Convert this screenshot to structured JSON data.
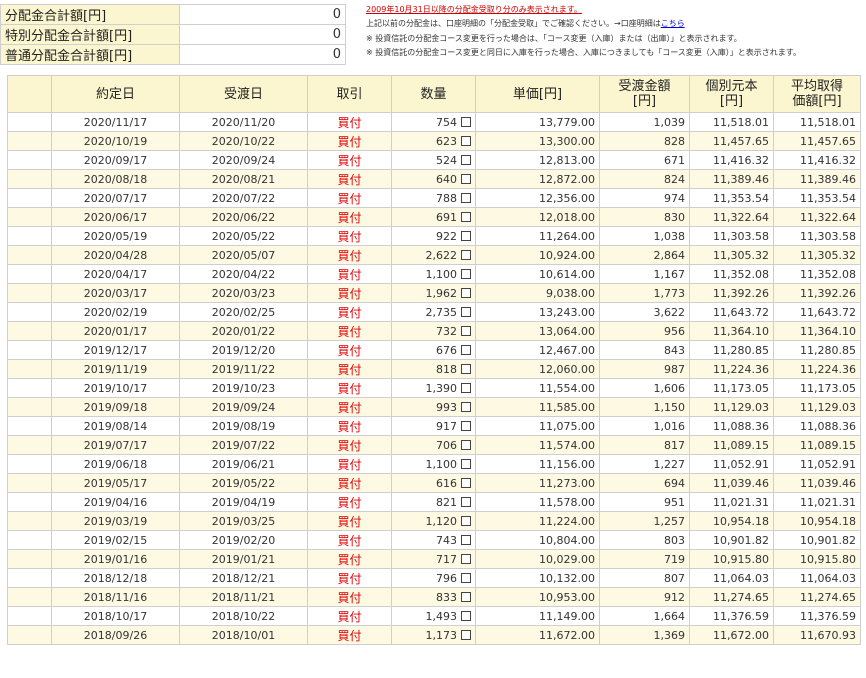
{
  "summary": [
    {
      "label": "分配金合計額[円]",
      "value": "0"
    },
    {
      "label": "特別分配金合計額[円]",
      "value": "0"
    },
    {
      "label": "普通分配金合計額[円]",
      "value": "0"
    }
  ],
  "notes": {
    "line1": "2009年10月31日以降の分配金受取り分のみ表示されます。",
    "line2_pre": "上記以前の分配金は、口座明細の",
    "line2_mid": "「分配金受取」",
    "line2_post": "でご確認ください。→口座明細は",
    "line2_link": "こちら",
    "line3": "※ 投資信託の分配金コース変更を行った場合は、「コース変更（入庫）または（出庫）」と表示されます。",
    "line4": "※ 投資信託の分配金コース変更と同日に入庫を行った場合、入庫につきましても「コース変更（入庫）」と表示されます。"
  },
  "table": {
    "headers": [
      "",
      "約定日",
      "受渡日",
      "取引",
      "数量",
      "単価[円]",
      "受渡金額\n[円]",
      "個別元本\n[円]",
      "平均取得\n価額[円]"
    ],
    "rows": [
      [
        "2020/11/17",
        "2020/11/20",
        "買付",
        "754",
        "13,779.00",
        "1,039",
        "11,518.01",
        "11,518.01"
      ],
      [
        "2020/10/19",
        "2020/10/22",
        "買付",
        "623",
        "13,300.00",
        "828",
        "11,457.65",
        "11,457.65"
      ],
      [
        "2020/09/17",
        "2020/09/24",
        "買付",
        "524",
        "12,813.00",
        "671",
        "11,416.32",
        "11,416.32"
      ],
      [
        "2020/08/18",
        "2020/08/21",
        "買付",
        "640",
        "12,872.00",
        "824",
        "11,389.46",
        "11,389.46"
      ],
      [
        "2020/07/17",
        "2020/07/22",
        "買付",
        "788",
        "12,356.00",
        "974",
        "11,353.54",
        "11,353.54"
      ],
      [
        "2020/06/17",
        "2020/06/22",
        "買付",
        "691",
        "12,018.00",
        "830",
        "11,322.64",
        "11,322.64"
      ],
      [
        "2020/05/19",
        "2020/05/22",
        "買付",
        "922",
        "11,264.00",
        "1,038",
        "11,303.58",
        "11,303.58"
      ],
      [
        "2020/04/28",
        "2020/05/07",
        "買付",
        "2,622",
        "10,924.00",
        "2,864",
        "11,305.32",
        "11,305.32"
      ],
      [
        "2020/04/17",
        "2020/04/22",
        "買付",
        "1,100",
        "10,614.00",
        "1,167",
        "11,352.08",
        "11,352.08"
      ],
      [
        "2020/03/17",
        "2020/03/23",
        "買付",
        "1,962",
        "9,038.00",
        "1,773",
        "11,392.26",
        "11,392.26"
      ],
      [
        "2020/02/19",
        "2020/02/25",
        "買付",
        "2,735",
        "13,243.00",
        "3,622",
        "11,643.72",
        "11,643.72"
      ],
      [
        "2020/01/17",
        "2020/01/22",
        "買付",
        "732",
        "13,064.00",
        "956",
        "11,364.10",
        "11,364.10"
      ],
      [
        "2019/12/17",
        "2019/12/20",
        "買付",
        "676",
        "12,467.00",
        "843",
        "11,280.85",
        "11,280.85"
      ],
      [
        "2019/11/19",
        "2019/11/22",
        "買付",
        "818",
        "12,060.00",
        "987",
        "11,224.36",
        "11,224.36"
      ],
      [
        "2019/10/17",
        "2019/10/23",
        "買付",
        "1,390",
        "11,554.00",
        "1,606",
        "11,173.05",
        "11,173.05"
      ],
      [
        "2019/09/18",
        "2019/09/24",
        "買付",
        "993",
        "11,585.00",
        "1,150",
        "11,129.03",
        "11,129.03"
      ],
      [
        "2019/08/14",
        "2019/08/19",
        "買付",
        "917",
        "11,075.00",
        "1,016",
        "11,088.36",
        "11,088.36"
      ],
      [
        "2019/07/17",
        "2019/07/22",
        "買付",
        "706",
        "11,574.00",
        "817",
        "11,089.15",
        "11,089.15"
      ],
      [
        "2019/06/18",
        "2019/06/21",
        "買付",
        "1,100",
        "11,156.00",
        "1,227",
        "11,052.91",
        "11,052.91"
      ],
      [
        "2019/05/17",
        "2019/05/22",
        "買付",
        "616",
        "11,273.00",
        "694",
        "11,039.46",
        "11,039.46"
      ],
      [
        "2019/04/16",
        "2019/04/19",
        "買付",
        "821",
        "11,578.00",
        "951",
        "11,021.31",
        "11,021.31"
      ],
      [
        "2019/03/19",
        "2019/03/25",
        "買付",
        "1,120",
        "11,224.00",
        "1,257",
        "10,954.18",
        "10,954.18"
      ],
      [
        "2019/02/15",
        "2019/02/20",
        "買付",
        "743",
        "10,804.00",
        "803",
        "10,901.82",
        "10,901.82"
      ],
      [
        "2019/01/16",
        "2019/01/21",
        "買付",
        "717",
        "10,029.00",
        "719",
        "10,915.80",
        "10,915.80"
      ],
      [
        "2018/12/18",
        "2018/12/21",
        "買付",
        "796",
        "10,132.00",
        "807",
        "11,064.03",
        "11,064.03"
      ],
      [
        "2018/11/16",
        "2018/11/21",
        "買付",
        "833",
        "10,953.00",
        "912",
        "11,274.65",
        "11,274.65"
      ],
      [
        "2018/10/17",
        "2018/10/22",
        "買付",
        "1,493",
        "11,149.00",
        "1,664",
        "11,376.59",
        "11,376.59"
      ],
      [
        "2018/09/26",
        "2018/10/01",
        "買付",
        "1,173",
        "11,672.00",
        "1,369",
        "11,672.00",
        "11,670.93"
      ]
    ]
  },
  "colors": {
    "header_bg": "#fbf6cf",
    "stripe_bg": "#fdf9e2",
    "trade_red": "#e00000",
    "border": "#cfcfcf"
  }
}
